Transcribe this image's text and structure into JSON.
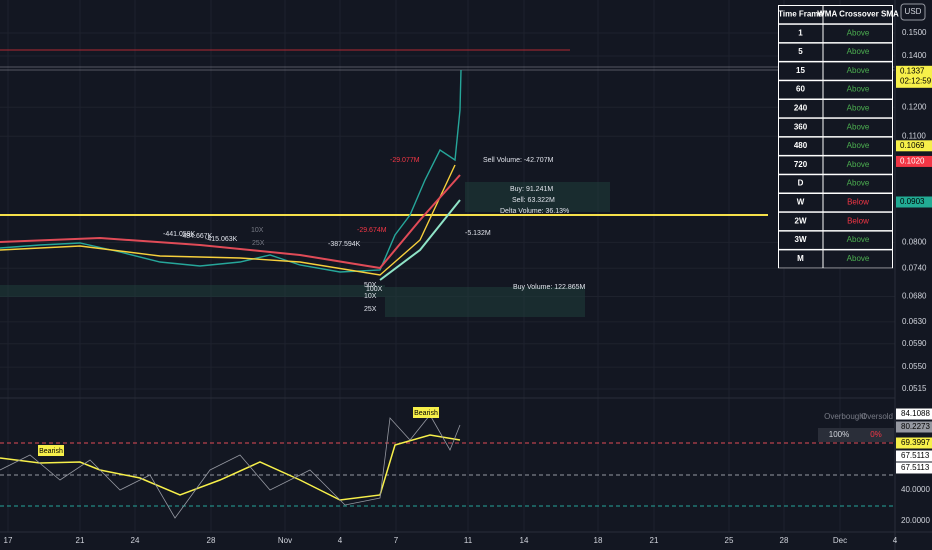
{
  "price_axis": {
    "currency": "USD",
    "labels": [
      "0.1500",
      "0.1400",
      "0.1200",
      "0.1100",
      "0.0800",
      "0.0740",
      "0.0680",
      "0.0630",
      "0.0590",
      "0.0550",
      "0.0515"
    ],
    "badges": [
      {
        "text": "0.1337",
        "sub": "02:12:59"
      },
      {
        "text": "0.1069"
      },
      {
        "text": "0.1020"
      },
      {
        "text": "0.0903"
      }
    ]
  },
  "oscillator_axis": {
    "labels": [
      "84.1088",
      "80.2273",
      "69.3997",
      "67.5113",
      "67.5113",
      "40.0000",
      "20.0000"
    ]
  },
  "time_axis": [
    "17",
    "21",
    "24",
    "28",
    "Nov",
    "4",
    "7",
    "11",
    "14",
    "18",
    "21",
    "25",
    "28",
    "Dec",
    "4"
  ],
  "table": {
    "header": [
      "Time Frame",
      "WMA Crossover SMA"
    ],
    "rows": [
      [
        "1",
        "Above"
      ],
      [
        "5",
        "Above"
      ],
      [
        "15",
        "Above"
      ],
      [
        "60",
        "Above"
      ],
      [
        "240",
        "Above"
      ],
      [
        "360",
        "Above"
      ],
      [
        "480",
        "Above"
      ],
      [
        "720",
        "Above"
      ],
      [
        "D",
        "Above"
      ],
      [
        "W",
        "Below"
      ],
      [
        "2W",
        "Below"
      ],
      [
        "3W",
        "Above"
      ],
      [
        "M",
        "Above"
      ]
    ]
  },
  "annotations": [
    "Sell Volume: -42.707M",
    "Buy: 91.241M",
    "Sell: 63.322M",
    "Delta Volume: 36.13%",
    "Buy Volume: 122.865M",
    "-441.059K",
    "-484.667K",
    "-415.063K",
    "-387.594K",
    "-29.674M",
    "-5.132M",
    "10X",
    "25X",
    "50X",
    "100X",
    "10X",
    "25X",
    "-29.077M",
    "Bearish",
    "Bearish",
    "Overbought",
    "Oversold",
    "100%",
    "0%"
  ]
}
